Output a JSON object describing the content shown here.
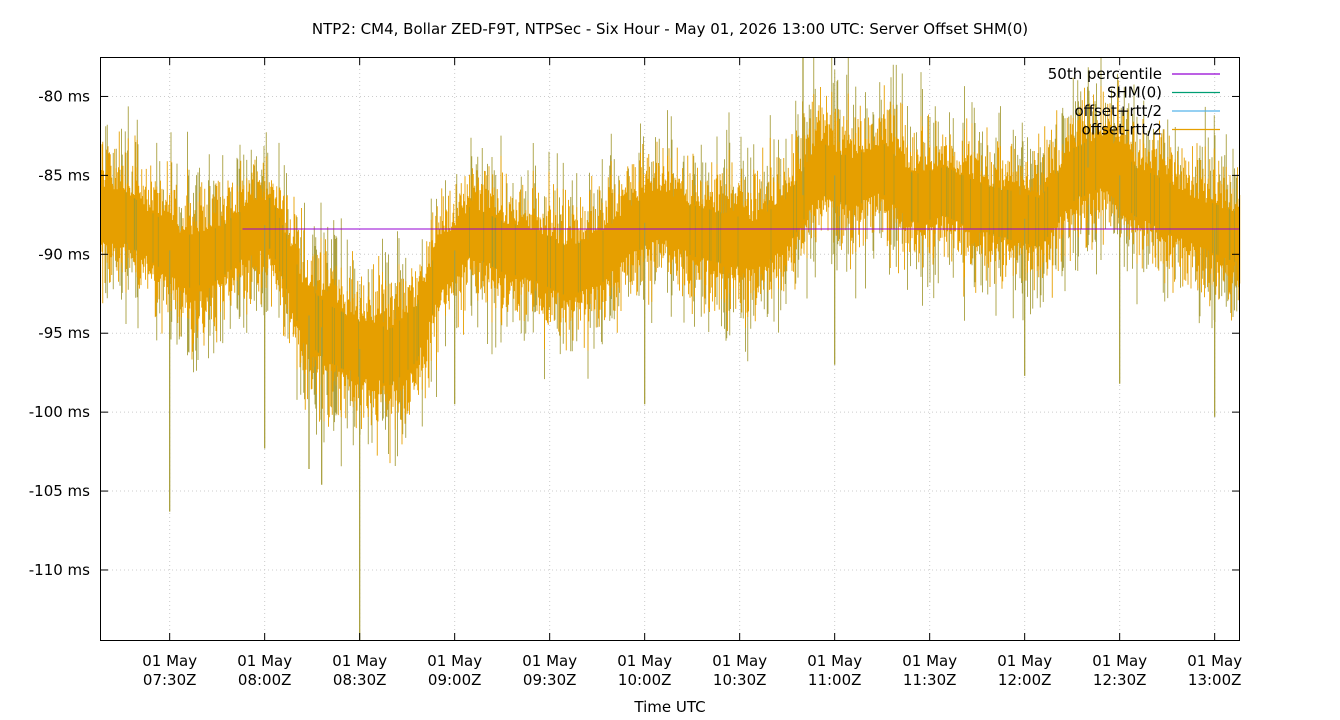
{
  "chart_data": {
    "type": "line",
    "title": "NTP2: CM4, Bollar ZED-F9T, NTPSec - Six Hour - May 01, 2026 13:00 UTC: Server Offset SHM(0)",
    "xlabel": "Time UTC",
    "ylabel": "",
    "grid": true,
    "legend_position": "top-right",
    "x_range": [
      "07:08Z",
      "13:08Z"
    ],
    "y_range_ms": [
      -114.5,
      -77.5
    ],
    "y_ticks": [
      {
        "value": -80,
        "label": "-80 ms"
      },
      {
        "value": -85,
        "label": "-85 ms"
      },
      {
        "value": -90,
        "label": "-90 ms"
      },
      {
        "value": -95,
        "label": "-95 ms"
      },
      {
        "value": -100,
        "label": "-100 ms"
      },
      {
        "value": -105,
        "label": "-105 ms"
      },
      {
        "value": -110,
        "label": "-110 ms"
      }
    ],
    "x_ticks": [
      {
        "time": "07:30Z",
        "date": "01 May"
      },
      {
        "time": "08:00Z",
        "date": "01 May"
      },
      {
        "time": "08:30Z",
        "date": "01 May"
      },
      {
        "time": "09:00Z",
        "date": "01 May"
      },
      {
        "time": "09:30Z",
        "date": "01 May"
      },
      {
        "time": "10:00Z",
        "date": "01 May"
      },
      {
        "time": "10:30Z",
        "date": "01 May"
      },
      {
        "time": "11:00Z",
        "date": "01 May"
      },
      {
        "time": "11:30Z",
        "date": "01 May"
      },
      {
        "time": "12:00Z",
        "date": "01 May"
      },
      {
        "time": "12:30Z",
        "date": "01 May"
      },
      {
        "time": "13:00Z",
        "date": "01 May"
      }
    ],
    "series": [
      {
        "name": "50th percentile",
        "color": "#9400d3",
        "constant_value_ms": -88.4
      },
      {
        "name": "SHM(0)",
        "color": "#009e73"
      },
      {
        "name": "offset+rtt/2",
        "color": "#56b4e9"
      },
      {
        "name": "offset-rtt/2",
        "color": "#e69f00"
      }
    ],
    "offset_envelope": {
      "times": [
        "07:08Z",
        "07:15Z",
        "07:25Z",
        "07:35Z",
        "07:45Z",
        "07:55Z",
        "08:02Z",
        "08:07Z",
        "08:12Z",
        "08:20Z",
        "08:30Z",
        "08:40Z",
        "08:48Z",
        "08:55Z",
        "09:05Z",
        "09:15Z",
        "09:25Z",
        "09:35Z",
        "09:45Z",
        "09:55Z",
        "10:05Z",
        "10:15Z",
        "10:25Z",
        "10:35Z",
        "10:45Z",
        "10:55Z",
        "11:05Z",
        "11:15Z",
        "11:25Z",
        "11:35Z",
        "11:45Z",
        "11:55Z",
        "12:05Z",
        "12:15Z",
        "12:25Z",
        "12:35Z",
        "12:45Z",
        "12:55Z",
        "13:08Z"
      ],
      "center_ms": [
        -87.5,
        -87.5,
        -89.0,
        -90.5,
        -90.0,
        -88.5,
        -88.0,
        -90.5,
        -93.5,
        -95.0,
        -96.0,
        -96.5,
        -95.0,
        -91.0,
        -88.5,
        -89.5,
        -90.0,
        -91.0,
        -90.5,
        -88.5,
        -87.5,
        -88.5,
        -89.0,
        -89.5,
        -88.0,
        -84.5,
        -85.5,
        -84.5,
        -86.5,
        -86.0,
        -87.0,
        -87.5,
        -88.0,
        -85.0,
        -84.0,
        -86.0,
        -87.0,
        -88.0,
        -89.0
      ],
      "halfwidth_ms": [
        2.8,
        2.8,
        2.6,
        2.8,
        2.8,
        2.6,
        2.7,
        2.9,
        3.0,
        3.0,
        3.0,
        3.0,
        3.0,
        2.8,
        2.6,
        2.7,
        2.7,
        2.7,
        2.7,
        2.6,
        2.6,
        2.7,
        2.7,
        2.7,
        2.7,
        2.8,
        2.7,
        2.7,
        2.6,
        2.6,
        2.6,
        2.6,
        2.6,
        2.8,
        2.8,
        2.7,
        2.7,
        2.6,
        2.7
      ]
    },
    "spikes": [
      {
        "time": "07:30Z",
        "value_ms": -106.3
      },
      {
        "time": "08:00Z",
        "value_ms": -102.3
      },
      {
        "time": "08:30Z",
        "value_ms": -114.5
      },
      {
        "time": "08:14Z",
        "value_ms": -103.6
      },
      {
        "time": "08:18Z",
        "value_ms": -104.6
      },
      {
        "time": "09:00Z",
        "value_ms": -99.5
      },
      {
        "time": "10:00Z",
        "value_ms": -99.5
      },
      {
        "time": "10:50Z",
        "value_ms": -77.5
      },
      {
        "time": "11:00Z",
        "value_ms": -97.0
      },
      {
        "time": "12:00Z",
        "value_ms": -97.7
      },
      {
        "time": "12:30Z",
        "value_ms": -98.2
      },
      {
        "time": "13:00Z",
        "value_ms": -100.3
      },
      {
        "time": "12:20Z",
        "value_ms": -79.5
      }
    ]
  }
}
